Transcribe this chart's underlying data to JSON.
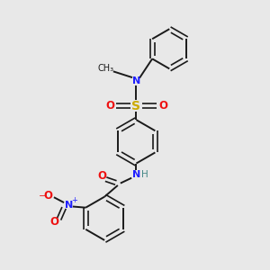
{
  "background_color": "#e8e8e8",
  "bond_color": "#1a1a1a",
  "N_color": "#2020ff",
  "O_color": "#ee1111",
  "S_color": "#ccaa00",
  "H_color": "#448888",
  "figsize": [
    3.0,
    3.0
  ],
  "dpi": 100,
  "xlim": [
    0,
    10
  ],
  "ylim": [
    0,
    10
  ]
}
